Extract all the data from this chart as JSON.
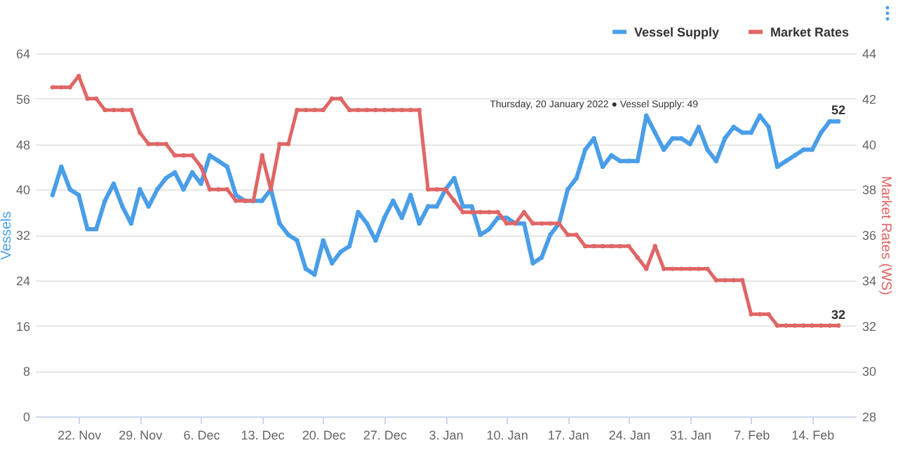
{
  "chart_data": {
    "type": "line",
    "x": [
      "2021-11-19",
      "2021-11-20",
      "2021-11-21",
      "2021-11-22",
      "2021-11-23",
      "2021-11-24",
      "2021-11-25",
      "2021-11-26",
      "2021-11-27",
      "2021-11-28",
      "2021-11-29",
      "2021-11-30",
      "2021-12-01",
      "2021-12-02",
      "2021-12-03",
      "2021-12-04",
      "2021-12-05",
      "2021-12-06",
      "2021-12-07",
      "2021-12-08",
      "2021-12-09",
      "2021-12-10",
      "2021-12-11",
      "2021-12-12",
      "2021-12-13",
      "2021-12-14",
      "2021-12-15",
      "2021-12-16",
      "2021-12-17",
      "2021-12-18",
      "2021-12-19",
      "2021-12-20",
      "2021-12-21",
      "2021-12-22",
      "2021-12-23",
      "2021-12-24",
      "2021-12-25",
      "2021-12-26",
      "2021-12-27",
      "2021-12-28",
      "2021-12-29",
      "2021-12-30",
      "2021-12-31",
      "2022-01-01",
      "2022-01-02",
      "2022-01-03",
      "2022-01-04",
      "2022-01-05",
      "2022-01-06",
      "2022-01-07",
      "2022-01-08",
      "2022-01-09",
      "2022-01-10",
      "2022-01-11",
      "2022-01-12",
      "2022-01-13",
      "2022-01-14",
      "2022-01-15",
      "2022-01-16",
      "2022-01-17",
      "2022-01-18",
      "2022-01-19",
      "2022-01-20",
      "2022-01-21",
      "2022-01-22",
      "2022-01-23",
      "2022-01-24",
      "2022-01-25",
      "2022-01-26",
      "2022-01-27",
      "2022-01-28",
      "2022-01-29",
      "2022-01-30",
      "2022-01-31",
      "2022-02-01",
      "2022-02-02",
      "2022-02-03",
      "2022-02-04",
      "2022-02-05",
      "2022-02-06",
      "2022-02-07",
      "2022-02-08",
      "2022-02-09",
      "2022-02-10",
      "2022-02-11",
      "2022-02-12",
      "2022-02-13",
      "2022-02-14",
      "2022-02-15",
      "2022-02-16",
      "2022-02-17"
    ],
    "series": [
      {
        "name": "Vessel Supply",
        "color": "#4a9ee8",
        "values": [
          39,
          44,
          40,
          39,
          33,
          33,
          38,
          41,
          37,
          34,
          40,
          37,
          40,
          42,
          43,
          40,
          43,
          41,
          46,
          45,
          44,
          39,
          38,
          38,
          38,
          40,
          34,
          32,
          31,
          26,
          25,
          31,
          27,
          29,
          30,
          36,
          34,
          31,
          35,
          38,
          35,
          39,
          34,
          37,
          37,
          40,
          42,
          37,
          37,
          32,
          33,
          35,
          35,
          34,
          34,
          27,
          28,
          32,
          34,
          40,
          42,
          47,
          49,
          44,
          46,
          45,
          45,
          45,
          53,
          50,
          47,
          49,
          49,
          48,
          51,
          47,
          45,
          49,
          51,
          50,
          50,
          53,
          51,
          44,
          45,
          46,
          47,
          47,
          50,
          52,
          52
        ],
        "value_labels": [
          null,
          null,
          null,
          null,
          null,
          null,
          null,
          null,
          null,
          null,
          null,
          null,
          null,
          null,
          null,
          null,
          null,
          null,
          null,
          null,
          null,
          null,
          null,
          null,
          null,
          null,
          null,
          null,
          null,
          null,
          null,
          null,
          null,
          null,
          null,
          null,
          null,
          null,
          null,
          null,
          null,
          null,
          null,
          null,
          null,
          null,
          null,
          null,
          null,
          null,
          null,
          null,
          null,
          null,
          null,
          null,
          null,
          null,
          null,
          null,
          null,
          null,
          null,
          null,
          null,
          null,
          null,
          null,
          null,
          null,
          null,
          null,
          null,
          null,
          null,
          null,
          null,
          null,
          null,
          null,
          null,
          null,
          null,
          null,
          null,
          null,
          null,
          null,
          null,
          null,
          "52"
        ]
      },
      {
        "name": "Market Rates",
        "color": "#e06666",
        "axis": "y2",
        "values": [
          42.5,
          42.5,
          42.5,
          43,
          42,
          42,
          41.5,
          41.5,
          41.5,
          41.5,
          40.5,
          40,
          40,
          40,
          39.5,
          39.5,
          39.5,
          39,
          38,
          38,
          38,
          37.5,
          37.5,
          37.5,
          39.5,
          38,
          40,
          40,
          41.5,
          41.5,
          41.5,
          41.5,
          42,
          42,
          41.5,
          41.5,
          41.5,
          41.5,
          41.5,
          41.5,
          41.5,
          41.5,
          41.5,
          38,
          38,
          38,
          37.5,
          37,
          37,
          37,
          37,
          37,
          36.5,
          36.5,
          37,
          36.5,
          36.5,
          36.5,
          36.5,
          36,
          36,
          35.5,
          35.5,
          35.5,
          35.5,
          35.5,
          35.5,
          35,
          34.5,
          35.5,
          34.5,
          34.5,
          34.5,
          34.5,
          34.5,
          34.5,
          34,
          34,
          34,
          34,
          32.5,
          32.5,
          32.5,
          32,
          32,
          32,
          32,
          32,
          32,
          32,
          32
        ],
        "value_labels": [
          null,
          null,
          null,
          null,
          null,
          null,
          null,
          null,
          null,
          null,
          null,
          null,
          null,
          null,
          null,
          null,
          null,
          null,
          null,
          null,
          null,
          null,
          null,
          null,
          null,
          null,
          null,
          null,
          null,
          null,
          null,
          null,
          null,
          null,
          null,
          null,
          null,
          null,
          null,
          null,
          null,
          null,
          null,
          null,
          null,
          null,
          null,
          null,
          null,
          null,
          null,
          null,
          null,
          null,
          null,
          null,
          null,
          null,
          null,
          null,
          null,
          null,
          null,
          null,
          null,
          null,
          null,
          null,
          null,
          null,
          null,
          null,
          null,
          null,
          null,
          null,
          null,
          null,
          null,
          null,
          null,
          null,
          null,
          null,
          null,
          null,
          null,
          null,
          null,
          null,
          "32"
        ]
      }
    ],
    "xlim": [
      "2021-11-17",
      "2022-02-19"
    ],
    "xticks": [
      {
        "value": "2021-11-22",
        "label": "22. Nov"
      },
      {
        "value": "2021-11-29",
        "label": "29. Nov"
      },
      {
        "value": "2021-12-06",
        "label": "6. Dec"
      },
      {
        "value": "2021-12-13",
        "label": "13. Dec"
      },
      {
        "value": "2021-12-20",
        "label": "20. Dec"
      },
      {
        "value": "2021-12-27",
        "label": "27. Dec"
      },
      {
        "value": "2022-01-03",
        "label": "3. Jan"
      },
      {
        "value": "2022-01-10",
        "label": "10. Jan"
      },
      {
        "value": "2022-01-17",
        "label": "17. Jan"
      },
      {
        "value": "2022-01-24",
        "label": "24. Jan"
      },
      {
        "value": "2022-01-31",
        "label": "31. Jan"
      },
      {
        "value": "2022-02-07",
        "label": "7. Feb"
      },
      {
        "value": "2022-02-14",
        "label": "14. Feb"
      }
    ],
    "ylabel": "Vessels",
    "y2label": "Market Rates (WS)",
    "ylim": [
      0,
      64
    ],
    "yticks": [
      0,
      8,
      16,
      24,
      32,
      40,
      48,
      56,
      64
    ],
    "y2lim": [
      28,
      44
    ],
    "y2ticks": [
      28,
      30,
      32,
      34,
      36,
      38,
      40,
      42,
      44
    ],
    "annotations": [
      {
        "text": "Thursday, 20 January 2022 ● Vessel Supply: 49",
        "x": "2022-01-20",
        "y": 49
      }
    ],
    "grid": "y",
    "legend": "top right",
    "marker": "circle",
    "line_style": "solid"
  }
}
